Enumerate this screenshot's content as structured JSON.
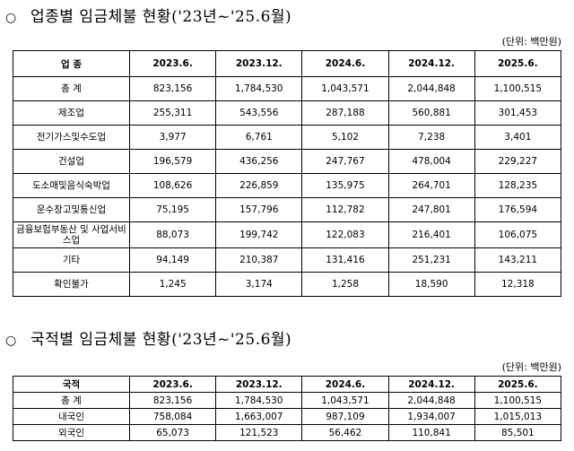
{
  "section1": {
    "bullet": "○",
    "title": "업종별 임금체불 현황('23년~'25.6월)",
    "unit": "(단위: 백만원)",
    "headers": [
      "업 종",
      "2023.6.",
      "2023.12.",
      "2024.6.",
      "2024.12.",
      "2025.6."
    ],
    "rows": [
      {
        "name": "총    계",
        "values": [
          "823,156",
          "1,784,530",
          "1,043,571",
          "2,044,848",
          "1,100,515"
        ]
      },
      {
        "name": "제조업",
        "values": [
          "255,311",
          "543,556",
          "287,188",
          "560,881",
          "301,453"
        ]
      },
      {
        "name": "전기가스및수도업",
        "values": [
          "3,977",
          "6,761",
          "5,102",
          "7,238",
          "3,401"
        ]
      },
      {
        "name": "건설업",
        "values": [
          "196,579",
          "436,256",
          "247,767",
          "478,004",
          "229,227"
        ]
      },
      {
        "name": "도소매및음식숙박업",
        "values": [
          "108,626",
          "226,859",
          "135,975",
          "264,701",
          "128,235"
        ]
      },
      {
        "name": "운수창고및통신업",
        "values": [
          "75,195",
          "157,796",
          "112,782",
          "247,801",
          "176,594"
        ]
      },
      {
        "name": "금융보험부동산 및 사업서비스업",
        "values": [
          "88,073",
          "199,742",
          "122,083",
          "216,401",
          "106,075"
        ]
      },
      {
        "name": "기타",
        "values": [
          "94,149",
          "210,387",
          "131,416",
          "251,231",
          "143,211"
        ]
      },
      {
        "name": "확인불가",
        "values": [
          "1,245",
          "3,174",
          "1,258",
          "18,590",
          "12,318"
        ]
      }
    ]
  },
  "section2": {
    "bullet": "○",
    "title": "국적별 임금체불 현황('23년~'25.6월)",
    "unit": "(단위: 백만원)",
    "headers": [
      "국적",
      "2023.6.",
      "2023.12.",
      "2024.6.",
      "2024.12.",
      "2025.6."
    ],
    "rows": [
      {
        "name": "총    계",
        "values": [
          "823,156",
          "1,784,530",
          "1,043,571",
          "2,044,848",
          "1,100,515"
        ]
      },
      {
        "name": "내국인",
        "values": [
          "758,084",
          "1,663,007",
          "987,109",
          "1,934,007",
          "1,015,013"
        ]
      },
      {
        "name": "외국인",
        "values": [
          "65,073",
          "121,523",
          "56,462",
          "110,841",
          "85,501"
        ]
      }
    ]
  }
}
